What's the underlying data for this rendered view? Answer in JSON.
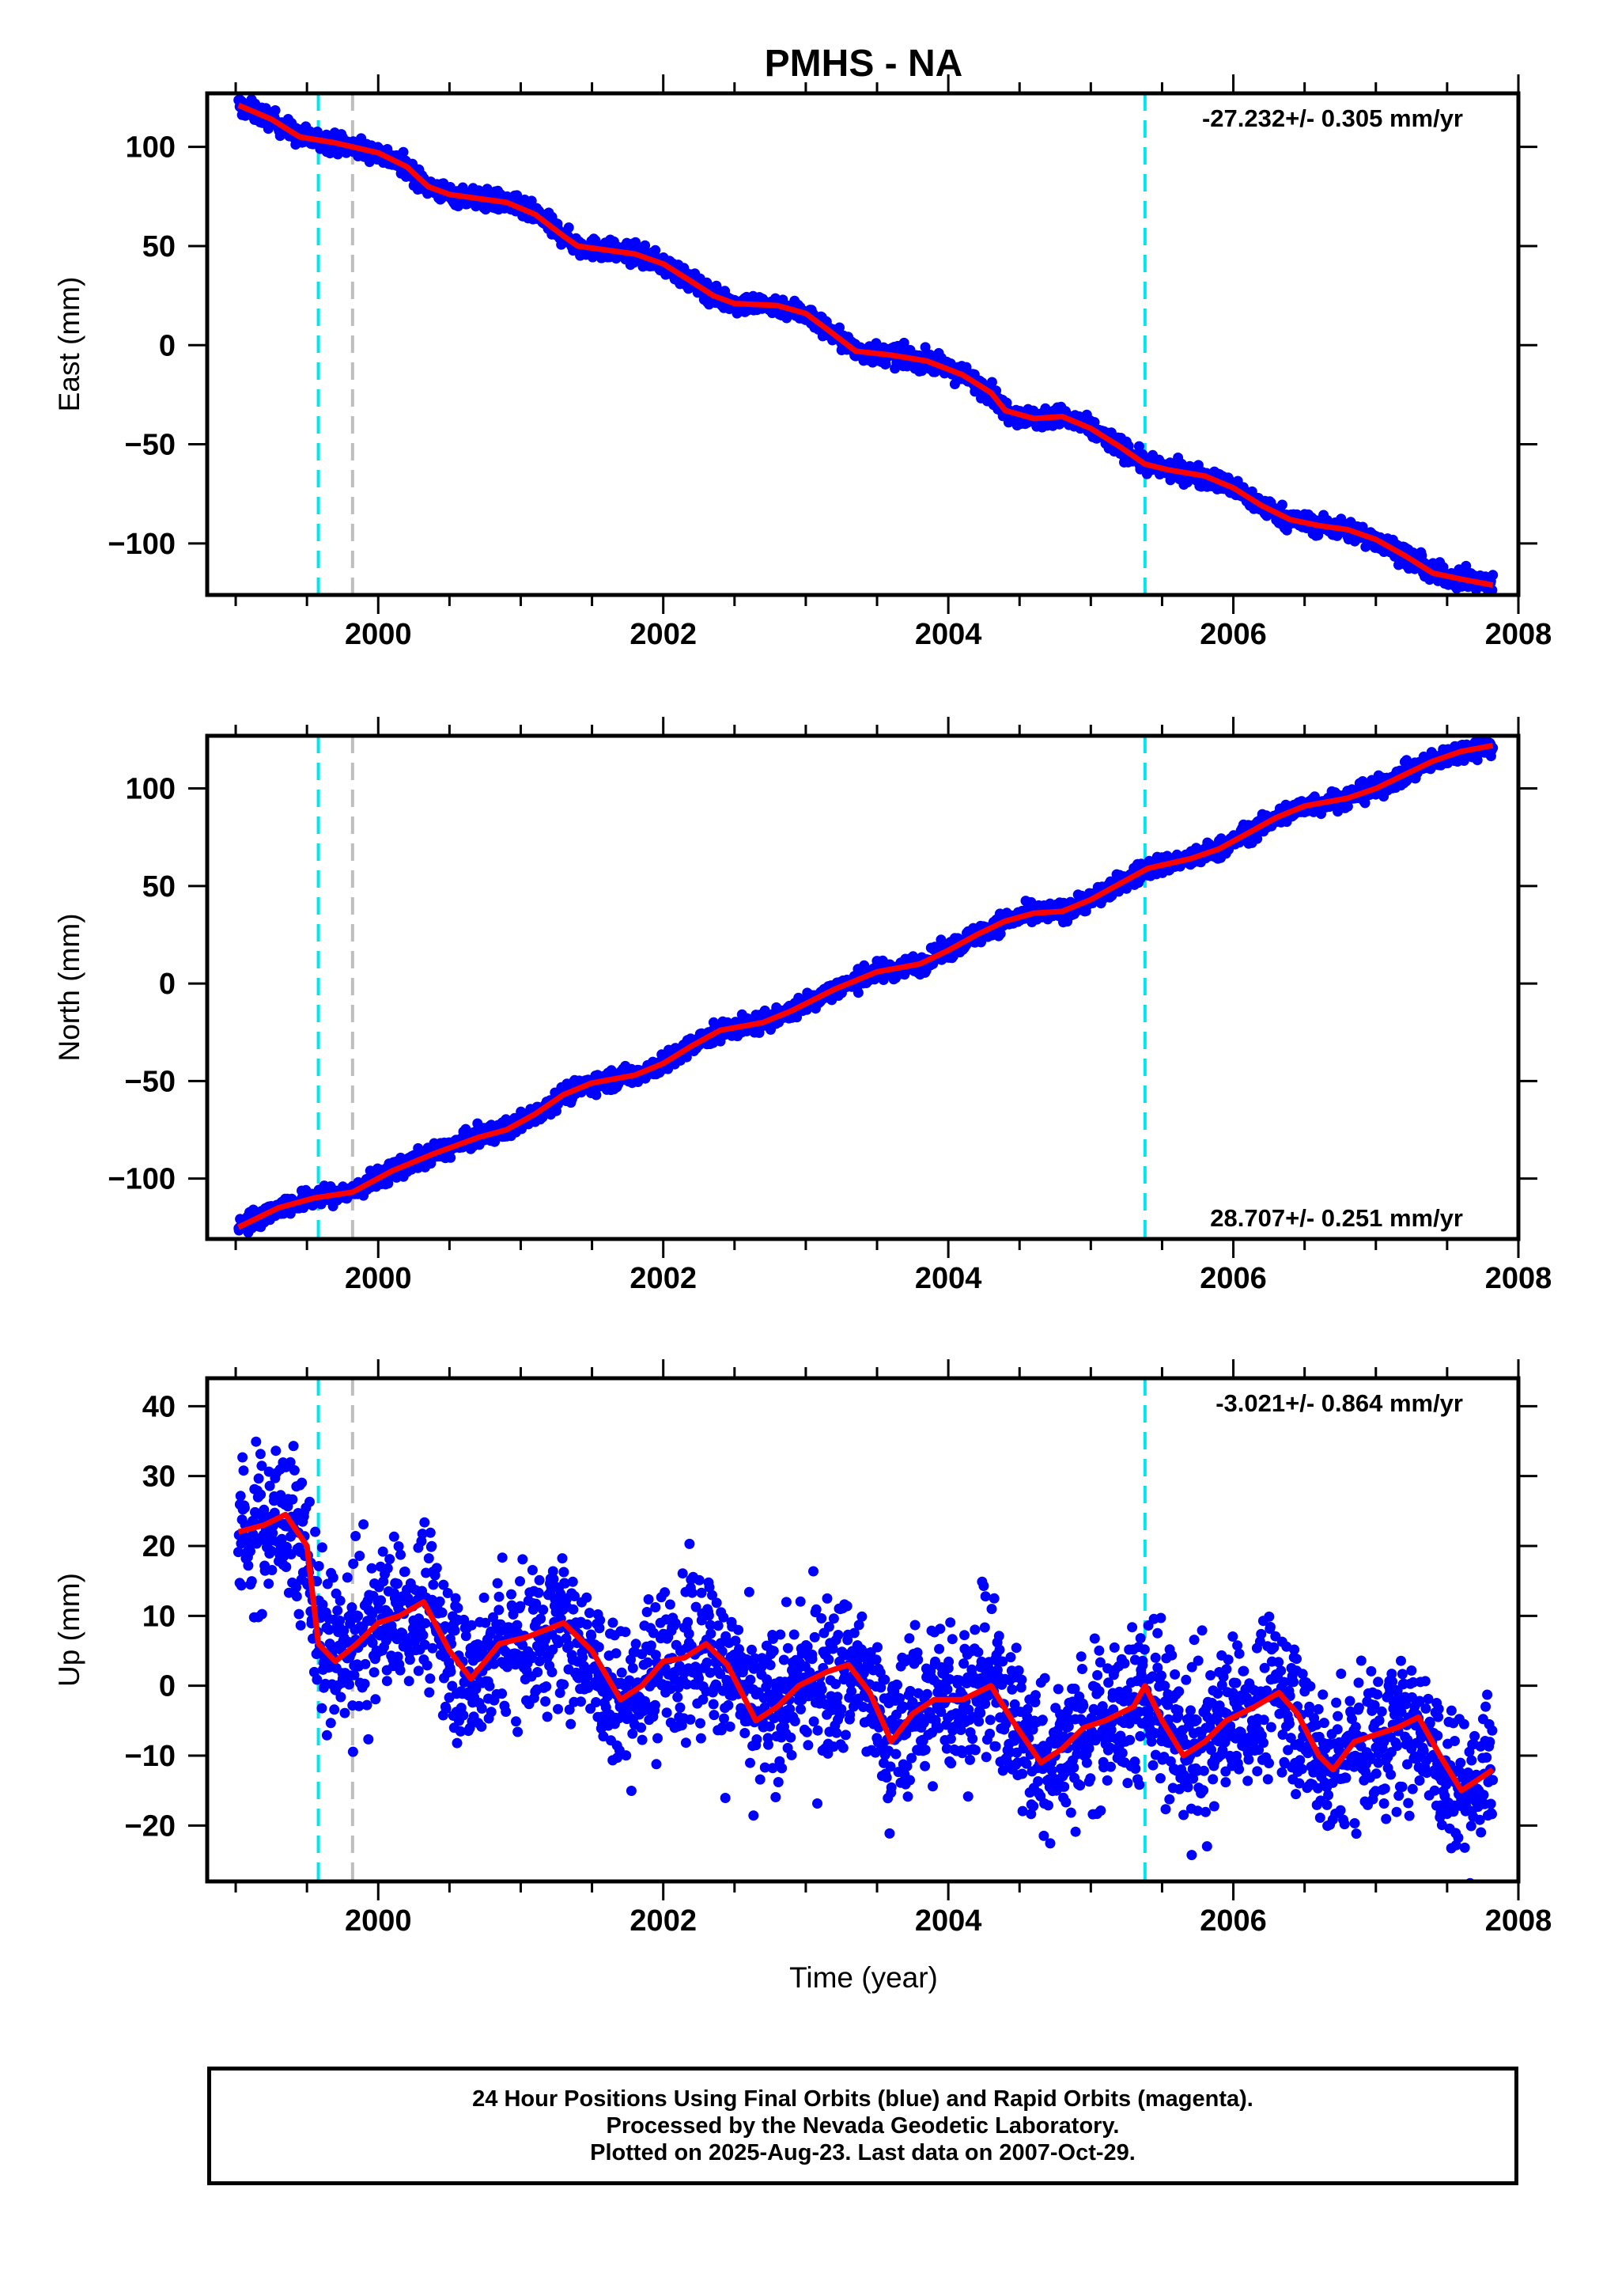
{
  "title": "PMHS - NA",
  "colors": {
    "observations": "#0000ff",
    "model": "#ff0000",
    "offset_equipment": "#00e5ee",
    "offset_other": "#bebebe",
    "frame": "#000000"
  },
  "xaxis": {
    "xlim": [
      1998.8,
      2008.0
    ],
    "ticks": [
      2000,
      2002,
      2004,
      2006,
      2008
    ],
    "minor_step": 0.5,
    "label": "Time (year)"
  },
  "offsets": {
    "equipment": [
      1999.58,
      2005.38
    ],
    "other": [
      1999.82
    ]
  },
  "chart_data": [
    {
      "type": "scatter",
      "component": "east",
      "ylabel": "East (mm)",
      "ylim": [
        -126,
        127
      ],
      "yticks": [
        100,
        50,
        0,
        -50,
        -100
      ],
      "yticklabels": [
        "100",
        "50",
        "0",
        "−50",
        "−100"
      ],
      "rate_label": "-27.232+/- 0.305 mm/yr",
      "rate_corner": "top-right",
      "scatter_amp": 2.5,
      "model": [
        [
          1999.02,
          121
        ],
        [
          1999.25,
          114
        ],
        [
          1999.45,
          105
        ],
        [
          1999.7,
          102
        ],
        [
          2000.0,
          97
        ],
        [
          2000.2,
          90
        ],
        [
          2000.35,
          80
        ],
        [
          2000.5,
          76
        ],
        [
          2000.7,
          74
        ],
        [
          2000.9,
          72
        ],
        [
          2001.1,
          66
        ],
        [
          2001.3,
          55
        ],
        [
          2001.4,
          50
        ],
        [
          2001.6,
          48
        ],
        [
          2001.8,
          46
        ],
        [
          2002.0,
          41
        ],
        [
          2002.2,
          32
        ],
        [
          2002.35,
          25
        ],
        [
          2002.5,
          21
        ],
        [
          2002.8,
          20
        ],
        [
          2003.0,
          16
        ],
        [
          2003.15,
          8
        ],
        [
          2003.35,
          -3
        ],
        [
          2003.6,
          -5
        ],
        [
          2003.85,
          -8
        ],
        [
          2004.1,
          -15
        ],
        [
          2004.3,
          -24
        ],
        [
          2004.4,
          -33
        ],
        [
          2004.6,
          -37
        ],
        [
          2004.8,
          -36
        ],
        [
          2005.0,
          -42
        ],
        [
          2005.2,
          -51
        ],
        [
          2005.38,
          -60
        ],
        [
          2005.55,
          -63
        ],
        [
          2005.8,
          -66
        ],
        [
          2006.0,
          -72
        ],
        [
          2006.2,
          -81
        ],
        [
          2006.4,
          -88
        ],
        [
          2006.6,
          -91
        ],
        [
          2006.8,
          -93
        ],
        [
          2007.0,
          -98
        ],
        [
          2007.2,
          -106
        ],
        [
          2007.4,
          -115
        ],
        [
          2007.6,
          -118
        ],
        [
          2007.82,
          -121
        ]
      ]
    },
    {
      "type": "scatter",
      "component": "north",
      "ylabel": "North (mm)",
      "ylim": [
        -131,
        127
      ],
      "yticks": [
        100,
        50,
        0,
        -50,
        -100
      ],
      "yticklabels": [
        "100",
        "50",
        "0",
        "−50",
        "−100"
      ],
      "rate_label": "28.707+/- 0.251 mm/yr",
      "rate_corner": "bottom-right",
      "scatter_amp": 2.5,
      "model": [
        [
          1999.02,
          -125
        ],
        [
          1999.3,
          -115
        ],
        [
          1999.55,
          -110
        ],
        [
          1999.82,
          -107
        ],
        [
          2000.1,
          -96
        ],
        [
          2000.4,
          -87
        ],
        [
          2000.7,
          -79
        ],
        [
          2000.9,
          -75
        ],
        [
          2001.1,
          -67
        ],
        [
          2001.3,
          -57
        ],
        [
          2001.5,
          -51
        ],
        [
          2001.8,
          -47
        ],
        [
          2002.0,
          -41
        ],
        [
          2002.2,
          -32
        ],
        [
          2002.4,
          -24
        ],
        [
          2002.7,
          -20
        ],
        [
          2002.9,
          -14
        ],
        [
          2003.2,
          -3
        ],
        [
          2003.5,
          6
        ],
        [
          2003.8,
          10
        ],
        [
          2004.0,
          17
        ],
        [
          2004.2,
          25
        ],
        [
          2004.4,
          32
        ],
        [
          2004.6,
          36
        ],
        [
          2004.8,
          37
        ],
        [
          2005.0,
          43
        ],
        [
          2005.2,
          51
        ],
        [
          2005.4,
          59
        ],
        [
          2005.7,
          64
        ],
        [
          2005.9,
          69
        ],
        [
          2006.1,
          77
        ],
        [
          2006.3,
          85
        ],
        [
          2006.5,
          91
        ],
        [
          2006.8,
          95
        ],
        [
          2007.0,
          100
        ],
        [
          2007.2,
          107
        ],
        [
          2007.4,
          114
        ],
        [
          2007.6,
          119
        ],
        [
          2007.82,
          122
        ]
      ]
    },
    {
      "type": "scatter",
      "component": "up",
      "ylabel": "Up (mm)",
      "ylim": [
        -28,
        44
      ],
      "yticks": [
        40,
        30,
        20,
        10,
        0,
        -10,
        -20
      ],
      "yticklabels": [
        "40",
        "30",
        "20",
        "10",
        "0",
        "−10",
        "−20"
      ],
      "rate_label": "-3.021+/- 0.864 mm/yr",
      "rate_corner": "top-right",
      "scatter_amp": 5.5,
      "model": [
        [
          1999.02,
          22
        ],
        [
          1999.2,
          23
        ],
        [
          1999.35,
          24.5
        ],
        [
          1999.5,
          20
        ],
        [
          1999.58,
          6
        ],
        [
          1999.7,
          3.5
        ],
        [
          1999.85,
          6
        ],
        [
          2000.0,
          9
        ],
        [
          2000.15,
          10
        ],
        [
          2000.32,
          12
        ],
        [
          2000.5,
          5
        ],
        [
          2000.65,
          1
        ],
        [
          2000.85,
          6
        ],
        [
          2001.05,
          7
        ],
        [
          2001.3,
          9
        ],
        [
          2001.5,
          5
        ],
        [
          2001.7,
          -2
        ],
        [
          2001.85,
          0
        ],
        [
          2002.0,
          3.5
        ],
        [
          2002.15,
          4
        ],
        [
          2002.3,
          6
        ],
        [
          2002.45,
          3
        ],
        [
          2002.65,
          -5
        ],
        [
          2002.8,
          -3
        ],
        [
          2002.95,
          0
        ],
        [
          2003.15,
          2
        ],
        [
          2003.3,
          3
        ],
        [
          2003.45,
          -1
        ],
        [
          2003.6,
          -8
        ],
        [
          2003.75,
          -4
        ],
        [
          2003.9,
          -2
        ],
        [
          2004.1,
          -2
        ],
        [
          2004.3,
          0
        ],
        [
          2004.45,
          -5
        ],
        [
          2004.65,
          -11
        ],
        [
          2004.8,
          -9
        ],
        [
          2004.95,
          -6
        ],
        [
          2005.1,
          -5
        ],
        [
          2005.3,
          -3
        ],
        [
          2005.38,
          0
        ],
        [
          2005.5,
          -5
        ],
        [
          2005.65,
          -10
        ],
        [
          2005.8,
          -8
        ],
        [
          2005.95,
          -5
        ],
        [
          2006.15,
          -3
        ],
        [
          2006.32,
          -1
        ],
        [
          2006.45,
          -4
        ],
        [
          2006.6,
          -10
        ],
        [
          2006.7,
          -12
        ],
        [
          2006.85,
          -8
        ],
        [
          2007.0,
          -7
        ],
        [
          2007.15,
          -6
        ],
        [
          2007.3,
          -4.5
        ],
        [
          2007.45,
          -10
        ],
        [
          2007.6,
          -15
        ],
        [
          2007.75,
          -13
        ],
        [
          2007.82,
          -12
        ]
      ]
    }
  ],
  "footer": {
    "line1": "24 Hour Positions Using Final Orbits (blue) and Rapid Orbits (magenta).",
    "line2": "Processed by the Nevada Geodetic Laboratory.",
    "line3": "Plotted on 2025-Aug-23. Last data on 2007-Oct-29."
  }
}
